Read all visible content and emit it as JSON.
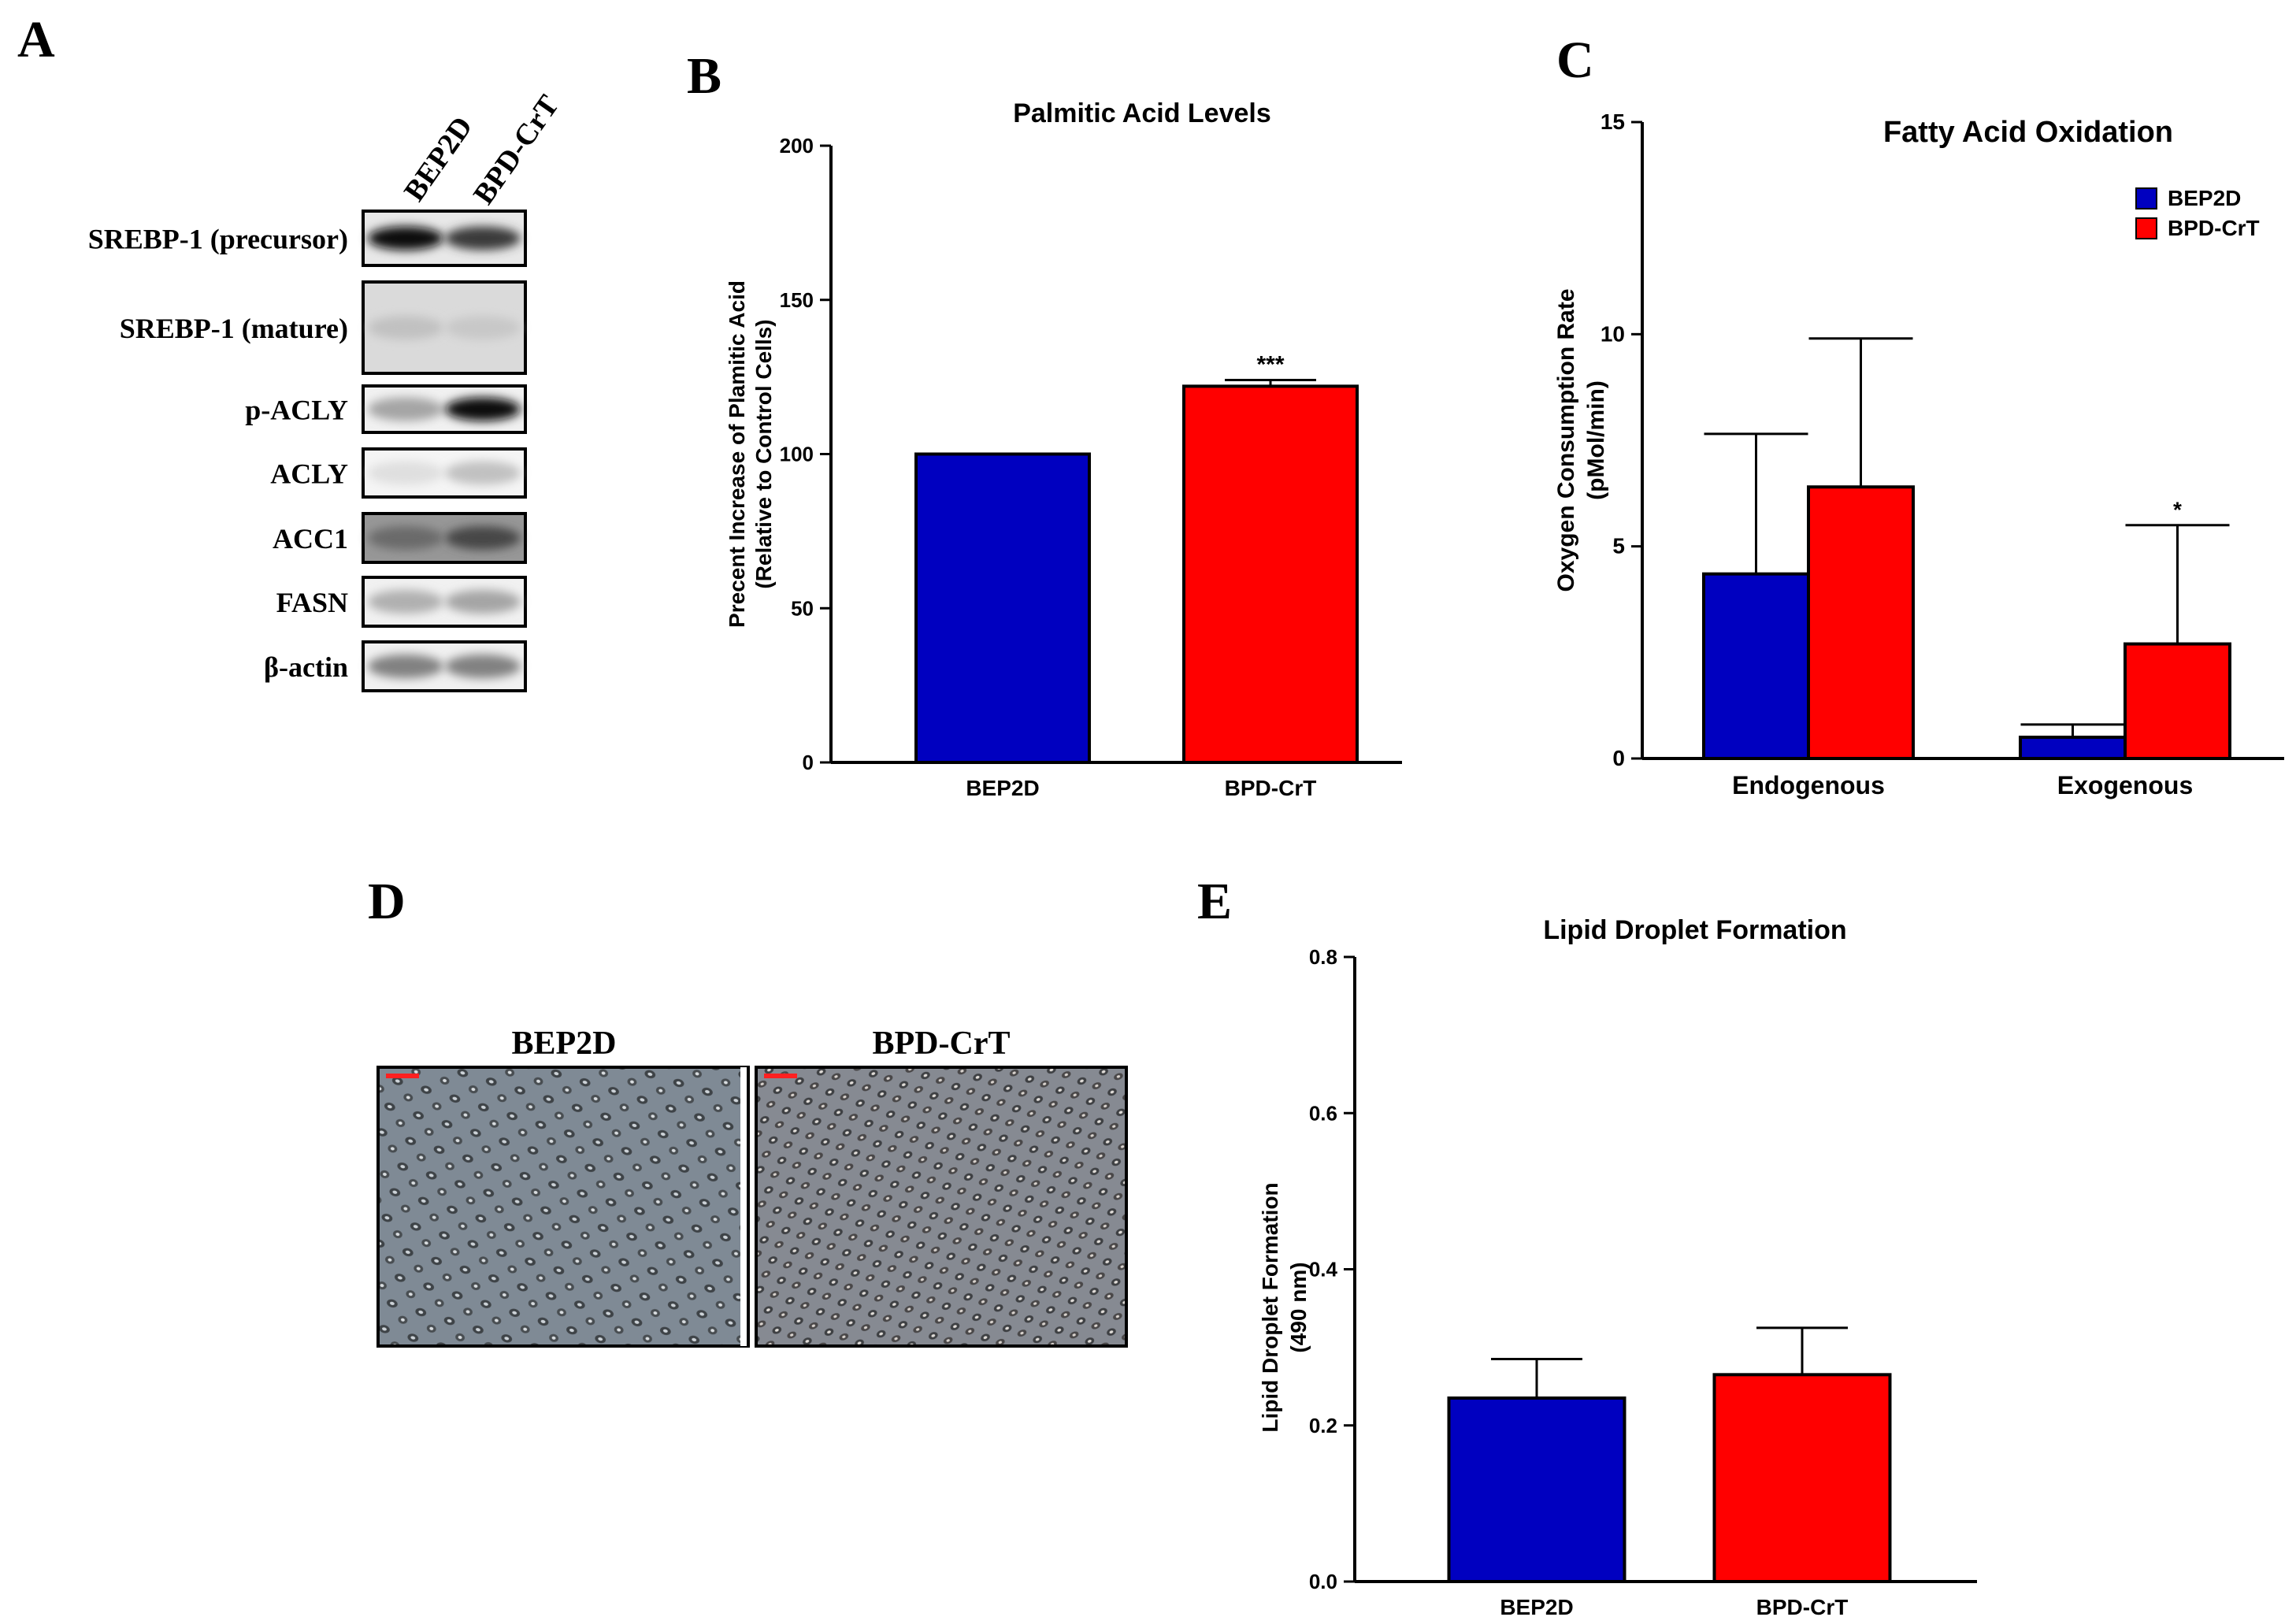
{
  "panel_labels": {
    "A": "A",
    "B": "B",
    "C": "C",
    "D": "D",
    "E": "E"
  },
  "colors": {
    "bep2d": "#0000c0",
    "bpdcrt": "#ff0000",
    "axis": "#000000"
  },
  "western_blot": {
    "lanes": [
      "BEP2D",
      "BPD-CrT"
    ],
    "rows": [
      {
        "label": "SREBP-1 (precursor)",
        "lane_intensity": [
          0.95,
          0.75
        ],
        "background": 0.1
      },
      {
        "label": "SREBP-1 (mature)",
        "lane_intensity": [
          0.18,
          0.15
        ],
        "background": 0.18
      },
      {
        "label": "p-ACLY",
        "lane_intensity": [
          0.3,
          0.95
        ],
        "background": 0.05
      },
      {
        "label": "ACLY",
        "lane_intensity": [
          0.05,
          0.18
        ],
        "background": 0.03
      },
      {
        "label": "ACC1",
        "lane_intensity": [
          0.55,
          0.7
        ],
        "background": 0.55
      },
      {
        "label": "FASN",
        "lane_intensity": [
          0.25,
          0.3
        ],
        "background": 0.05
      },
      {
        "label": "β-actin",
        "lane_intensity": [
          0.45,
          0.45
        ],
        "background": 0.05
      }
    ]
  },
  "micrographs": {
    "titles": [
      "BEP2D",
      "BPD-CrT"
    ]
  },
  "chart_data": [
    {
      "id": "B",
      "type": "bar",
      "title": "Palmitic Acid Levels",
      "ylabel_lines": [
        "Precent Increase of Plamitic Acid",
        "(Relative to Control Cells)"
      ],
      "xlabel": "",
      "categories": [
        "BEP2D",
        "BPD-CrT"
      ],
      "values": [
        100,
        122
      ],
      "errors": [
        0,
        2
      ],
      "significance": [
        "",
        "***"
      ],
      "ylim": [
        0,
        200
      ],
      "yticks": [
        0,
        50,
        100,
        150,
        200
      ],
      "colors": [
        "#0000c0",
        "#ff0000"
      ]
    },
    {
      "id": "C",
      "type": "bar",
      "title": "Fatty  Acid Oxidation",
      "ylabel_lines": [
        "Oxygen Consumption Rate",
        "(pMol/min)"
      ],
      "xlabel": "",
      "categories": [
        "Endogenous",
        "Exogenous"
      ],
      "series": [
        {
          "name": "BEP2D",
          "values": [
            4.35,
            0.5
          ],
          "errors": [
            3.3,
            0.3
          ],
          "color": "#0000c0"
        },
        {
          "name": "BPD-CrT",
          "values": [
            6.4,
            2.7
          ],
          "errors": [
            3.5,
            2.8
          ],
          "color": "#ff0000"
        }
      ],
      "significance": [
        [
          "",
          ""
        ],
        [
          "",
          "*"
        ]
      ],
      "legend": "top-right",
      "ylim": [
        0,
        15
      ],
      "yticks": [
        0,
        5,
        10,
        15
      ]
    },
    {
      "id": "E",
      "type": "bar",
      "title": "Lipid Droplet Formation",
      "ylabel_lines": [
        "Lipid Droplet Formation",
        "(490 nm)"
      ],
      "xlabel": "",
      "categories": [
        "BEP2D",
        "BPD-CrT"
      ],
      "values": [
        0.235,
        0.265
      ],
      "errors": [
        0.05,
        0.06
      ],
      "significance": [
        "",
        ""
      ],
      "ylim": [
        0,
        0.8
      ],
      "yticks": [
        "0.0",
        "0.2",
        "0.4",
        "0.6",
        "0.8"
      ],
      "colors": [
        "#0000c0",
        "#ff0000"
      ]
    }
  ]
}
